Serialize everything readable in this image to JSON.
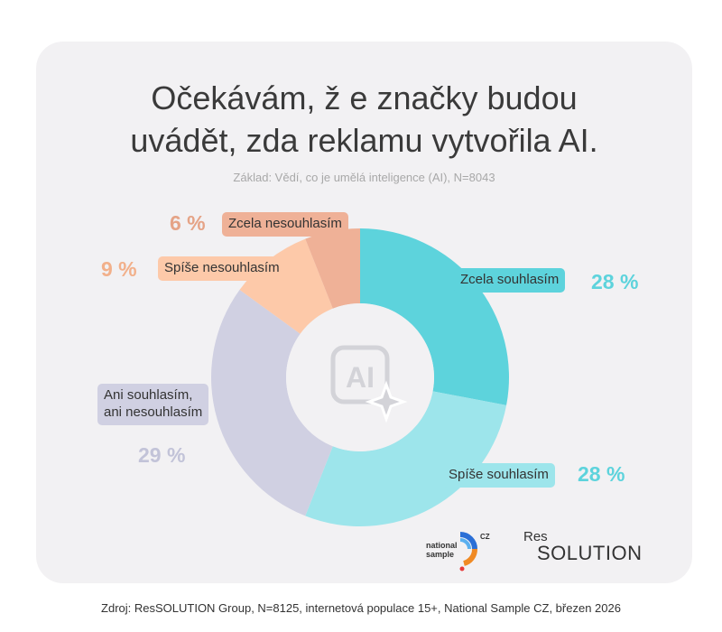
{
  "title_lines": [
    "Očekávám, ž e značky budou",
    "uvádět, zda reklamu vytvořila AI."
  ],
  "subtitle": "Základ: Vědí, co je umělá inteligence (AI), N=8043",
  "chart_data": {
    "type": "pie",
    "donut": true,
    "title": "Očekávám, ž e značky budou uvádět, zda reklamu vytvořila AI.",
    "subtitle": "Základ: Vědí, co je umělá inteligence (AI), N=8043",
    "center_icon": "ai-sparkle-icon",
    "slices": [
      {
        "label": "Zcela souhlasím",
        "value": 28,
        "value_label": "28 %",
        "color": "#5dd3dc",
        "label_color": "#5dd3dc"
      },
      {
        "label": "Spíše souhlasím",
        "value": 28,
        "value_label": "28 %",
        "color": "#9de5eb",
        "label_color": "#5dd3dc"
      },
      {
        "label": "Ani souhlasím, ani nesouhlasím",
        "label_lines": [
          "Ani souhlasím,",
          "ani nesouhlasím"
        ],
        "value": 29,
        "value_label": "29 %",
        "color": "#d0d0e2",
        "label_color": "#c2c3d8"
      },
      {
        "label": "Spíše nesouhlasím",
        "value": 9,
        "value_label": "9 %",
        "color": "#fdc9a9",
        "label_color": "#f2b08a"
      },
      {
        "label": "Zcela nesouhlasím",
        "value": 6,
        "value_label": "6 %",
        "color": "#efb197",
        "label_color": "#e5a386"
      }
    ]
  },
  "logos": {
    "national_sample": {
      "line1": "national",
      "line2": "sample",
      "badge": "CZ"
    },
    "ressolution": {
      "line1": "Res",
      "line2": "SOLUTION"
    }
  },
  "source": "Zdroj: ResSOLUTION Group, N=8125, internetová populace 15+, National Sample CZ, březen 2026"
}
